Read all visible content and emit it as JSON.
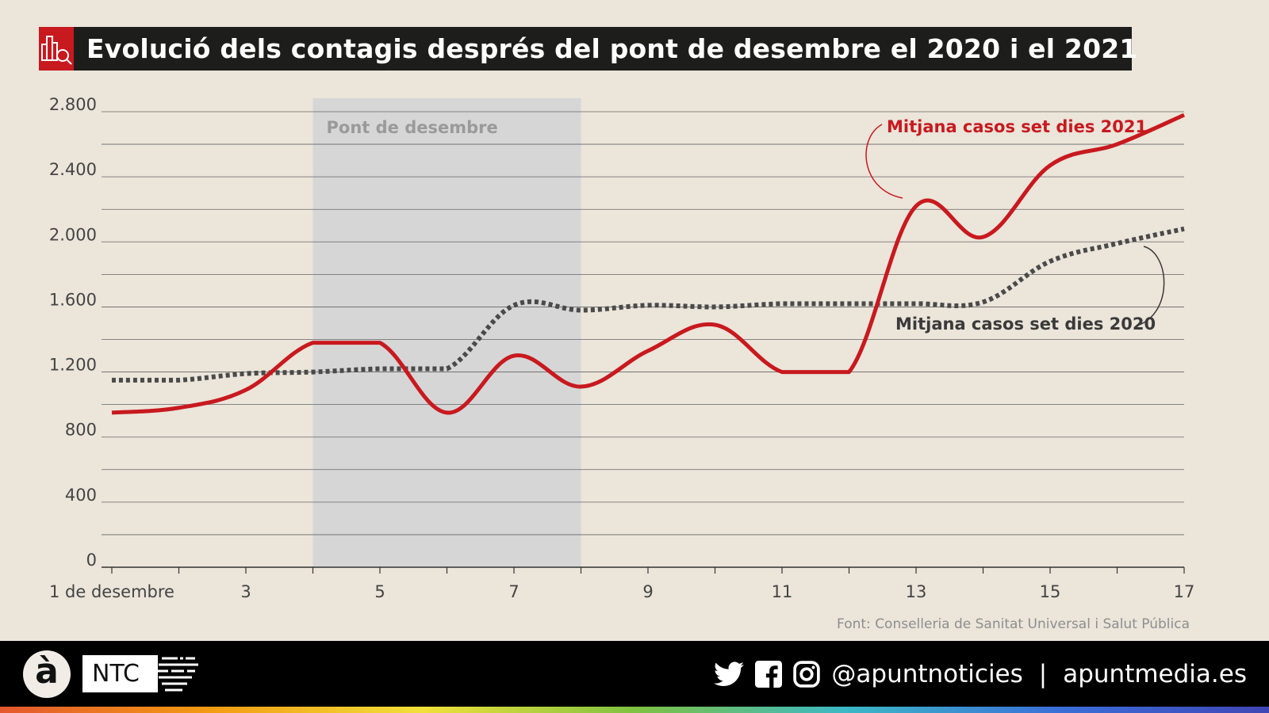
{
  "title": "Evolució dels contagis després del pont de desembre el 2020 i el 2021",
  "chart_data": {
    "type": "line",
    "title": "Evolució dels contagis després del pont de desembre el 2020 i el 2021",
    "x": [
      1,
      2,
      3,
      4,
      5,
      6,
      7,
      8,
      9,
      10,
      11,
      12,
      13,
      14,
      15,
      16,
      17
    ],
    "x_tick_labels": [
      {
        "x": 1,
        "label": "1 de desembre"
      },
      {
        "x": 3,
        "label": "3"
      },
      {
        "x": 5,
        "label": "5"
      },
      {
        "x": 7,
        "label": "7"
      },
      {
        "x": 9,
        "label": "9"
      },
      {
        "x": 11,
        "label": "11"
      },
      {
        "x": 13,
        "label": "13"
      },
      {
        "x": 15,
        "label": "15"
      },
      {
        "x": 17,
        "label": "17"
      }
    ],
    "y_tick_labels": [
      "0",
      "400",
      "800",
      "1.200",
      "1.600",
      "2.000",
      "2.400",
      "2.800"
    ],
    "y_ticks": [
      0,
      400,
      800,
      1200,
      1600,
      2000,
      2400,
      2800
    ],
    "ylim": [
      0,
      2800
    ],
    "xlim": [
      1,
      17
    ],
    "grid": true,
    "series": [
      {
        "name": "Mitjana casos set dies 2021",
        "color": "#c8191f",
        "style": "solid",
        "values": [
          950,
          980,
          1090,
          1380,
          1380,
          950,
          1300,
          1110,
          1330,
          1490,
          1200,
          1200,
          2220,
          2030,
          2470,
          2600,
          2780
        ]
      },
      {
        "name": "Mitjana casos set dies 2020",
        "color": "#4a4a4a",
        "style": "dotted",
        "values": [
          1150,
          1150,
          1190,
          1200,
          1220,
          1220,
          1610,
          1580,
          1610,
          1600,
          1620,
          1620,
          1620,
          1630,
          1880,
          1990,
          2080
        ]
      }
    ],
    "highlight_band": {
      "label": "Pont de desembre",
      "x_start": 4,
      "x_end": 8,
      "color": "#d6d6d6"
    }
  },
  "source": "Font: Conselleria de Sanitat Universal i Salut Pública",
  "footer": {
    "logo_a": "à",
    "logo_ntc": "NTC",
    "handle": "@apuntnoticies",
    "separator": "|",
    "website": "apuntmedia.es",
    "icons": [
      "twitter-icon",
      "facebook-icon",
      "instagram-icon"
    ]
  }
}
